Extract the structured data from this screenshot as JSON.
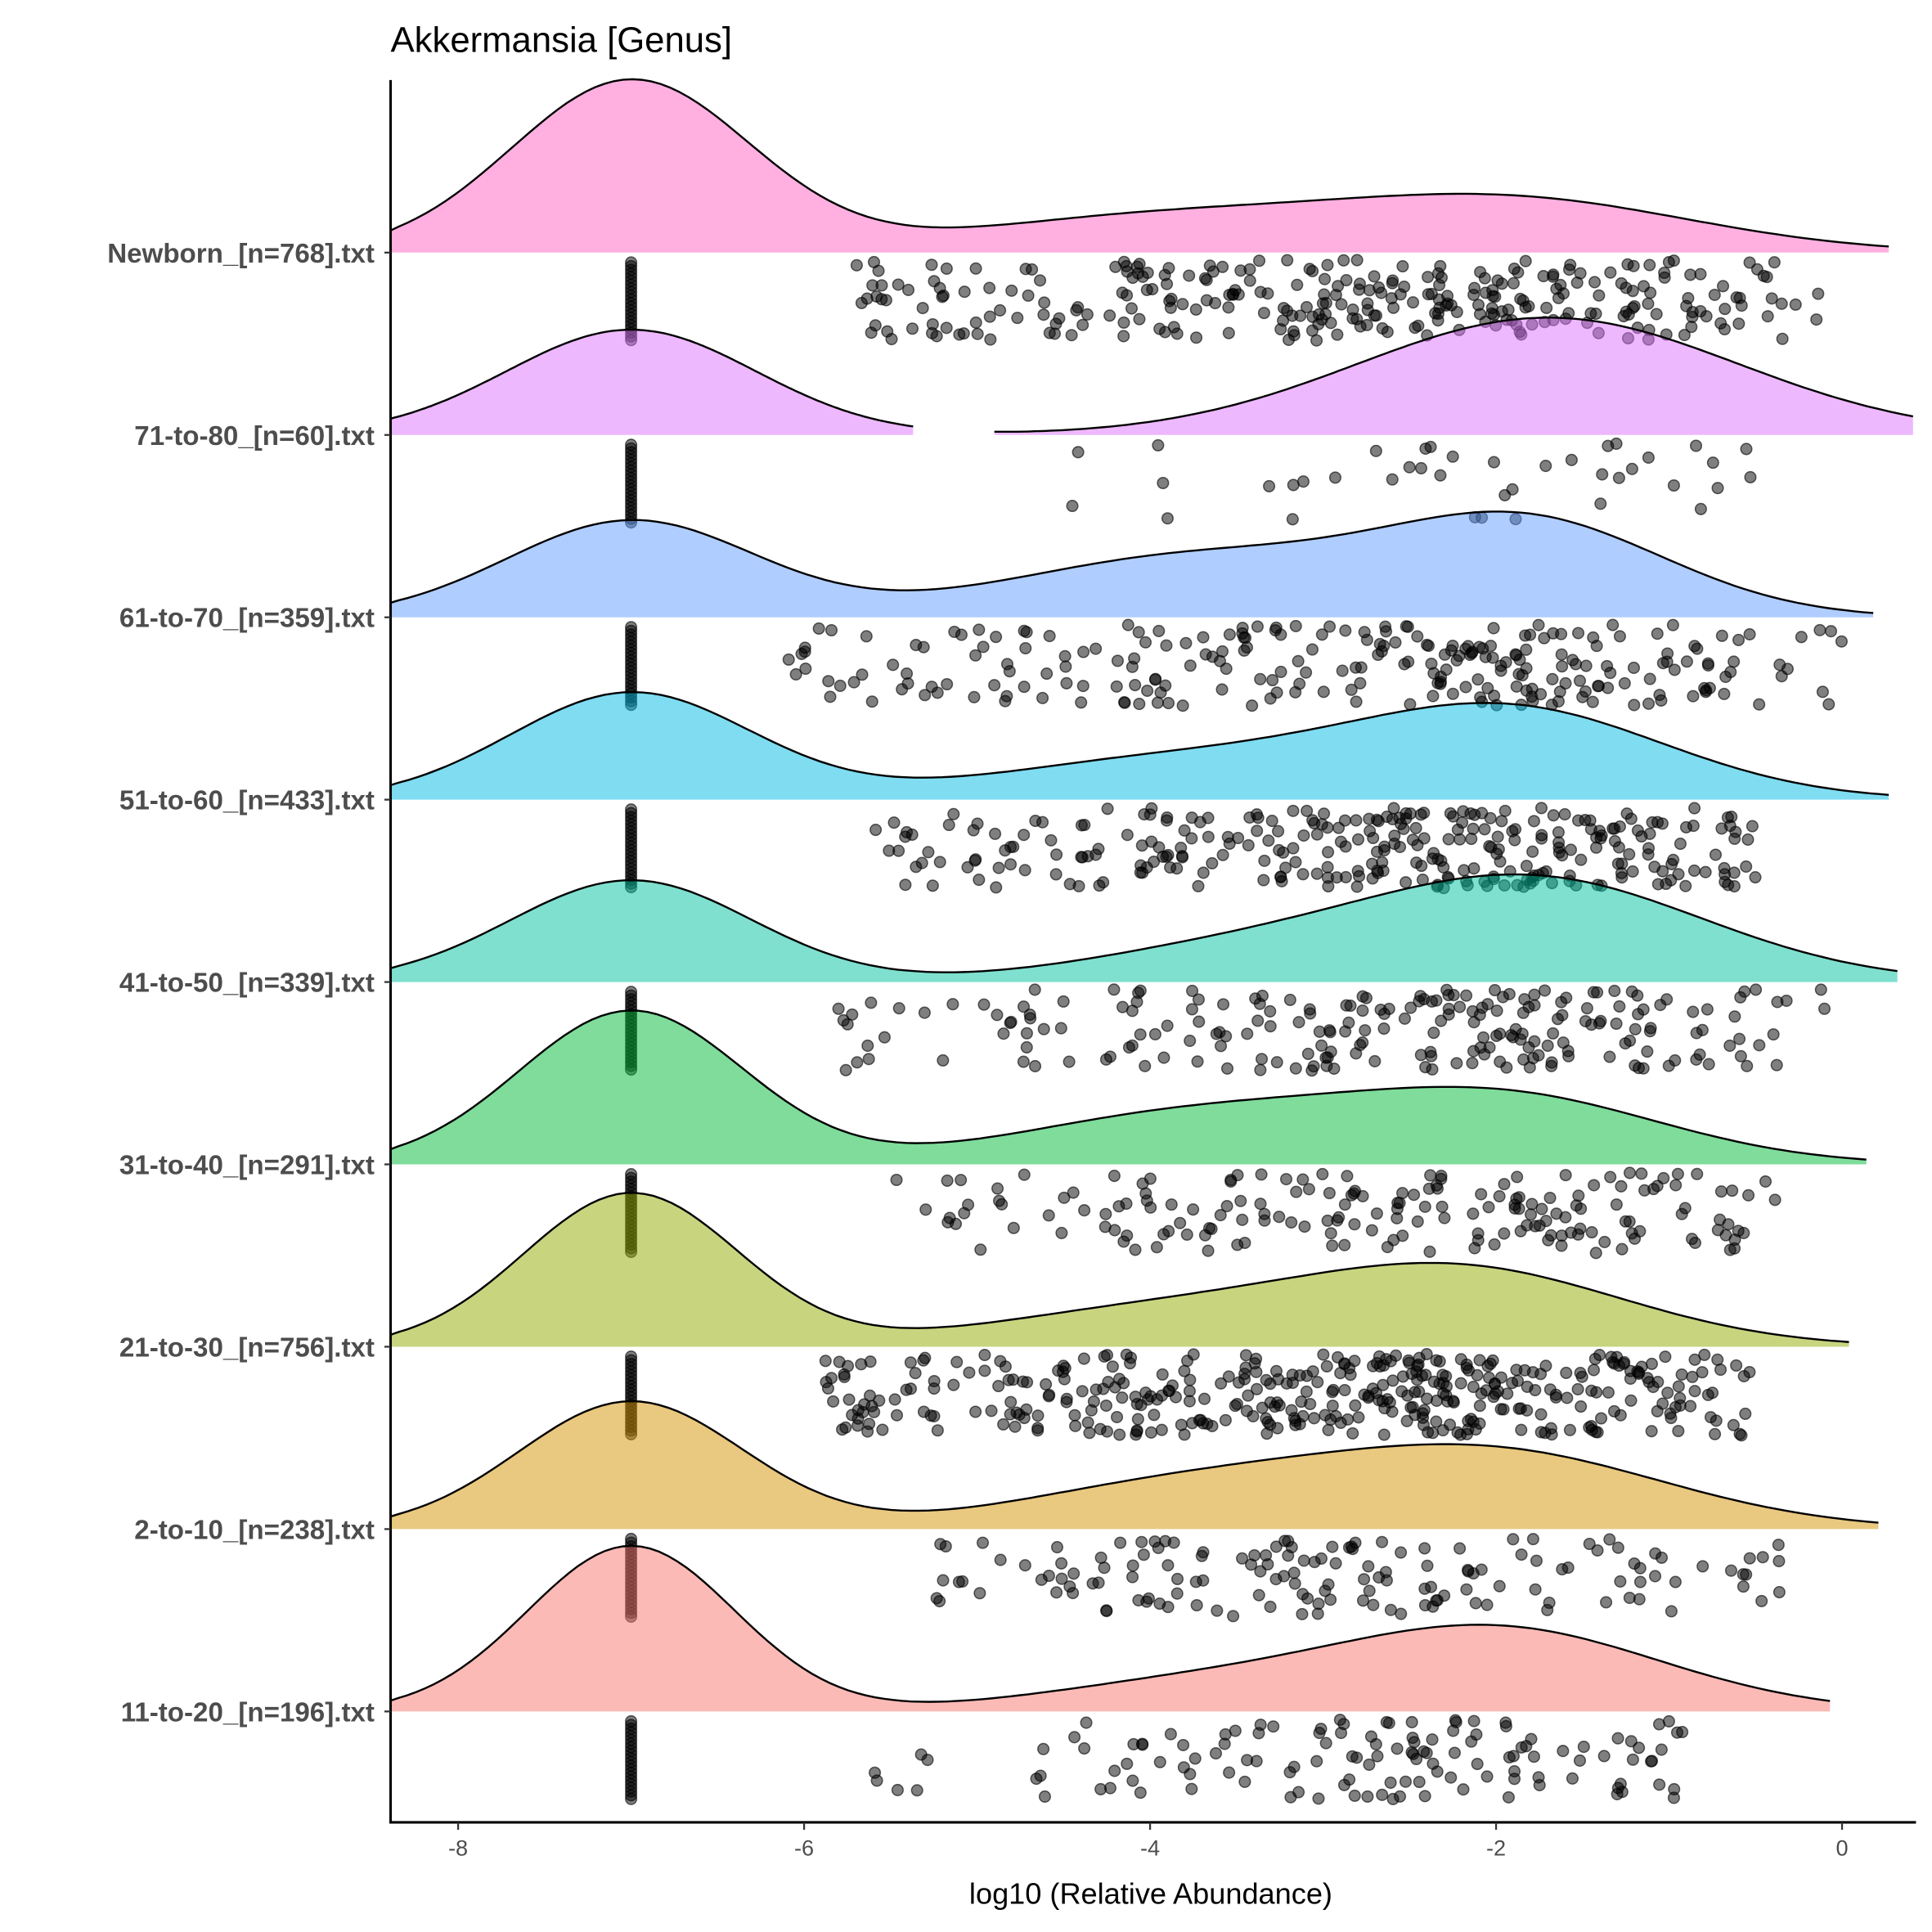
{
  "chart_data": {
    "type": "ridgeline-density-with-jittered-points",
    "title": "Akkermansia [Genus]",
    "xlabel": "log10 (Relative Abundance)",
    "ylabel": "",
    "xlim": [
      -8.4,
      0.41
    ],
    "x_ticks": [
      -8,
      -6,
      -4,
      -2,
      0
    ],
    "x_tick_labels": [
      "-8",
      "-6",
      "-4",
      "-2",
      "0"
    ],
    "grid": false,
    "legend": "none",
    "fill_opacity": 0.5,
    "zero_value_position": -7,
    "groups": [
      {
        "label": "Newborn_[n=768].txt",
        "color": "#FF61C3",
        "segments": [
          [
            -8.4,
            0.27
          ]
        ],
        "components": [
          {
            "mu": -7,
            "h": 1.0,
            "sd": 0.69
          },
          {
            "mu": -1.9,
            "h": 0.3,
            "sd": 1.05
          },
          {
            "mu": -4.0,
            "h": 0.2,
            "sd": 1.1
          }
        ],
        "points": {
          "range": [
            -5.7,
            0.0
          ],
          "count": 300
        }
      },
      {
        "label": "71-to-80_[n=60].txt",
        "color": "#DB72FB",
        "segments": [
          [
            -8.4,
            -5.37
          ],
          [
            -4.9,
            0.41
          ]
        ],
        "components": [
          {
            "mu": -7,
            "h": 0.61,
            "sd": 0.72
          },
          {
            "mu": -1.7,
            "h": 0.68,
            "sd": 1.1
          }
        ],
        "points": {
          "range": [
            -4.7,
            -0.4
          ],
          "count": 40
        }
      },
      {
        "label": "61-to-70_[n=359].txt",
        "color": "#619CFF",
        "segments": [
          [
            -8.4,
            0.18
          ]
        ],
        "components": [
          {
            "mu": -7,
            "h": 0.56,
            "sd": 0.72
          },
          {
            "mu": -1.8,
            "h": 0.52,
            "sd": 0.8
          },
          {
            "mu": -3.7,
            "h": 0.36,
            "sd": 1.1
          }
        ],
        "points": {
          "range": [
            -6.1,
            0.0
          ],
          "count": 250
        }
      },
      {
        "label": "51-to-60_[n=433].txt",
        "color": "#00B9E3",
        "segments": [
          [
            -8.4,
            0.27
          ]
        ],
        "components": [
          {
            "mu": -7,
            "h": 0.62,
            "sd": 0.7
          },
          {
            "mu": -1.9,
            "h": 0.5,
            "sd": 0.9
          },
          {
            "mu": -3.8,
            "h": 0.24,
            "sd": 1.1
          }
        ],
        "points": {
          "range": [
            -5.7,
            -0.5
          ],
          "count": 300
        }
      },
      {
        "label": "41-to-50_[n=339].txt",
        "color": "#00C19F",
        "segments": [
          [
            -8.4,
            0.32
          ]
        ],
        "components": [
          {
            "mu": -7,
            "h": 0.59,
            "sd": 0.7
          },
          {
            "mu": -1.8,
            "h": 0.6,
            "sd": 1.0
          },
          {
            "mu": -3.6,
            "h": 0.16,
            "sd": 0.9
          }
        ],
        "points": {
          "range": [
            -5.9,
            -0.1
          ],
          "count": 220
        }
      },
      {
        "label": "31-to-40_[n=291].txt",
        "color": "#00BA38",
        "segments": [
          [
            -8.4,
            0.14
          ]
        ],
        "components": [
          {
            "mu": -7,
            "h": 0.89,
            "sd": 0.65
          },
          {
            "mu": -1.9,
            "h": 0.36,
            "sd": 0.9
          },
          {
            "mu": -3.7,
            "h": 0.3,
            "sd": 1.05
          }
        ],
        "points": {
          "range": [
            -5.5,
            -0.35
          ],
          "count": 180
        }
      },
      {
        "label": "21-to-30_[n=756].txt",
        "color": "#93AA00",
        "segments": [
          [
            -8.4,
            0.04
          ]
        ],
        "components": [
          {
            "mu": -7,
            "h": 0.89,
            "sd": 0.62
          },
          {
            "mu": -2.2,
            "h": 0.44,
            "sd": 0.95
          },
          {
            "mu": -4.0,
            "h": 0.2,
            "sd": 1.0
          }
        ],
        "points": {
          "range": [
            -5.9,
            -0.5
          ],
          "count": 400
        }
      },
      {
        "label": "2-to-10_[n=238].txt",
        "color": "#D39200",
        "segments": [
          [
            -8.4,
            0.21
          ]
        ],
        "components": [
          {
            "mu": -7,
            "h": 0.74,
            "sd": 0.65
          },
          {
            "mu": -2.0,
            "h": 0.43,
            "sd": 1.0
          },
          {
            "mu": -3.8,
            "h": 0.25,
            "sd": 1.0
          }
        ],
        "points": {
          "range": [
            -5.3,
            -0.25
          ],
          "count": 150
        }
      },
      {
        "label": "11-to-20_[n=196].txt",
        "color": "#F8766D",
        "segments": [
          [
            -8.4,
            -0.07
          ]
        ],
        "components": [
          {
            "mu": -7,
            "h": 0.96,
            "sd": 0.6
          },
          {
            "mu": -2.0,
            "h": 0.48,
            "sd": 0.95
          },
          {
            "mu": -3.8,
            "h": 0.15,
            "sd": 0.9
          }
        ],
        "points": {
          "range": [
            -5.6,
            -0.9
          ],
          "count": 130
        }
      }
    ]
  }
}
